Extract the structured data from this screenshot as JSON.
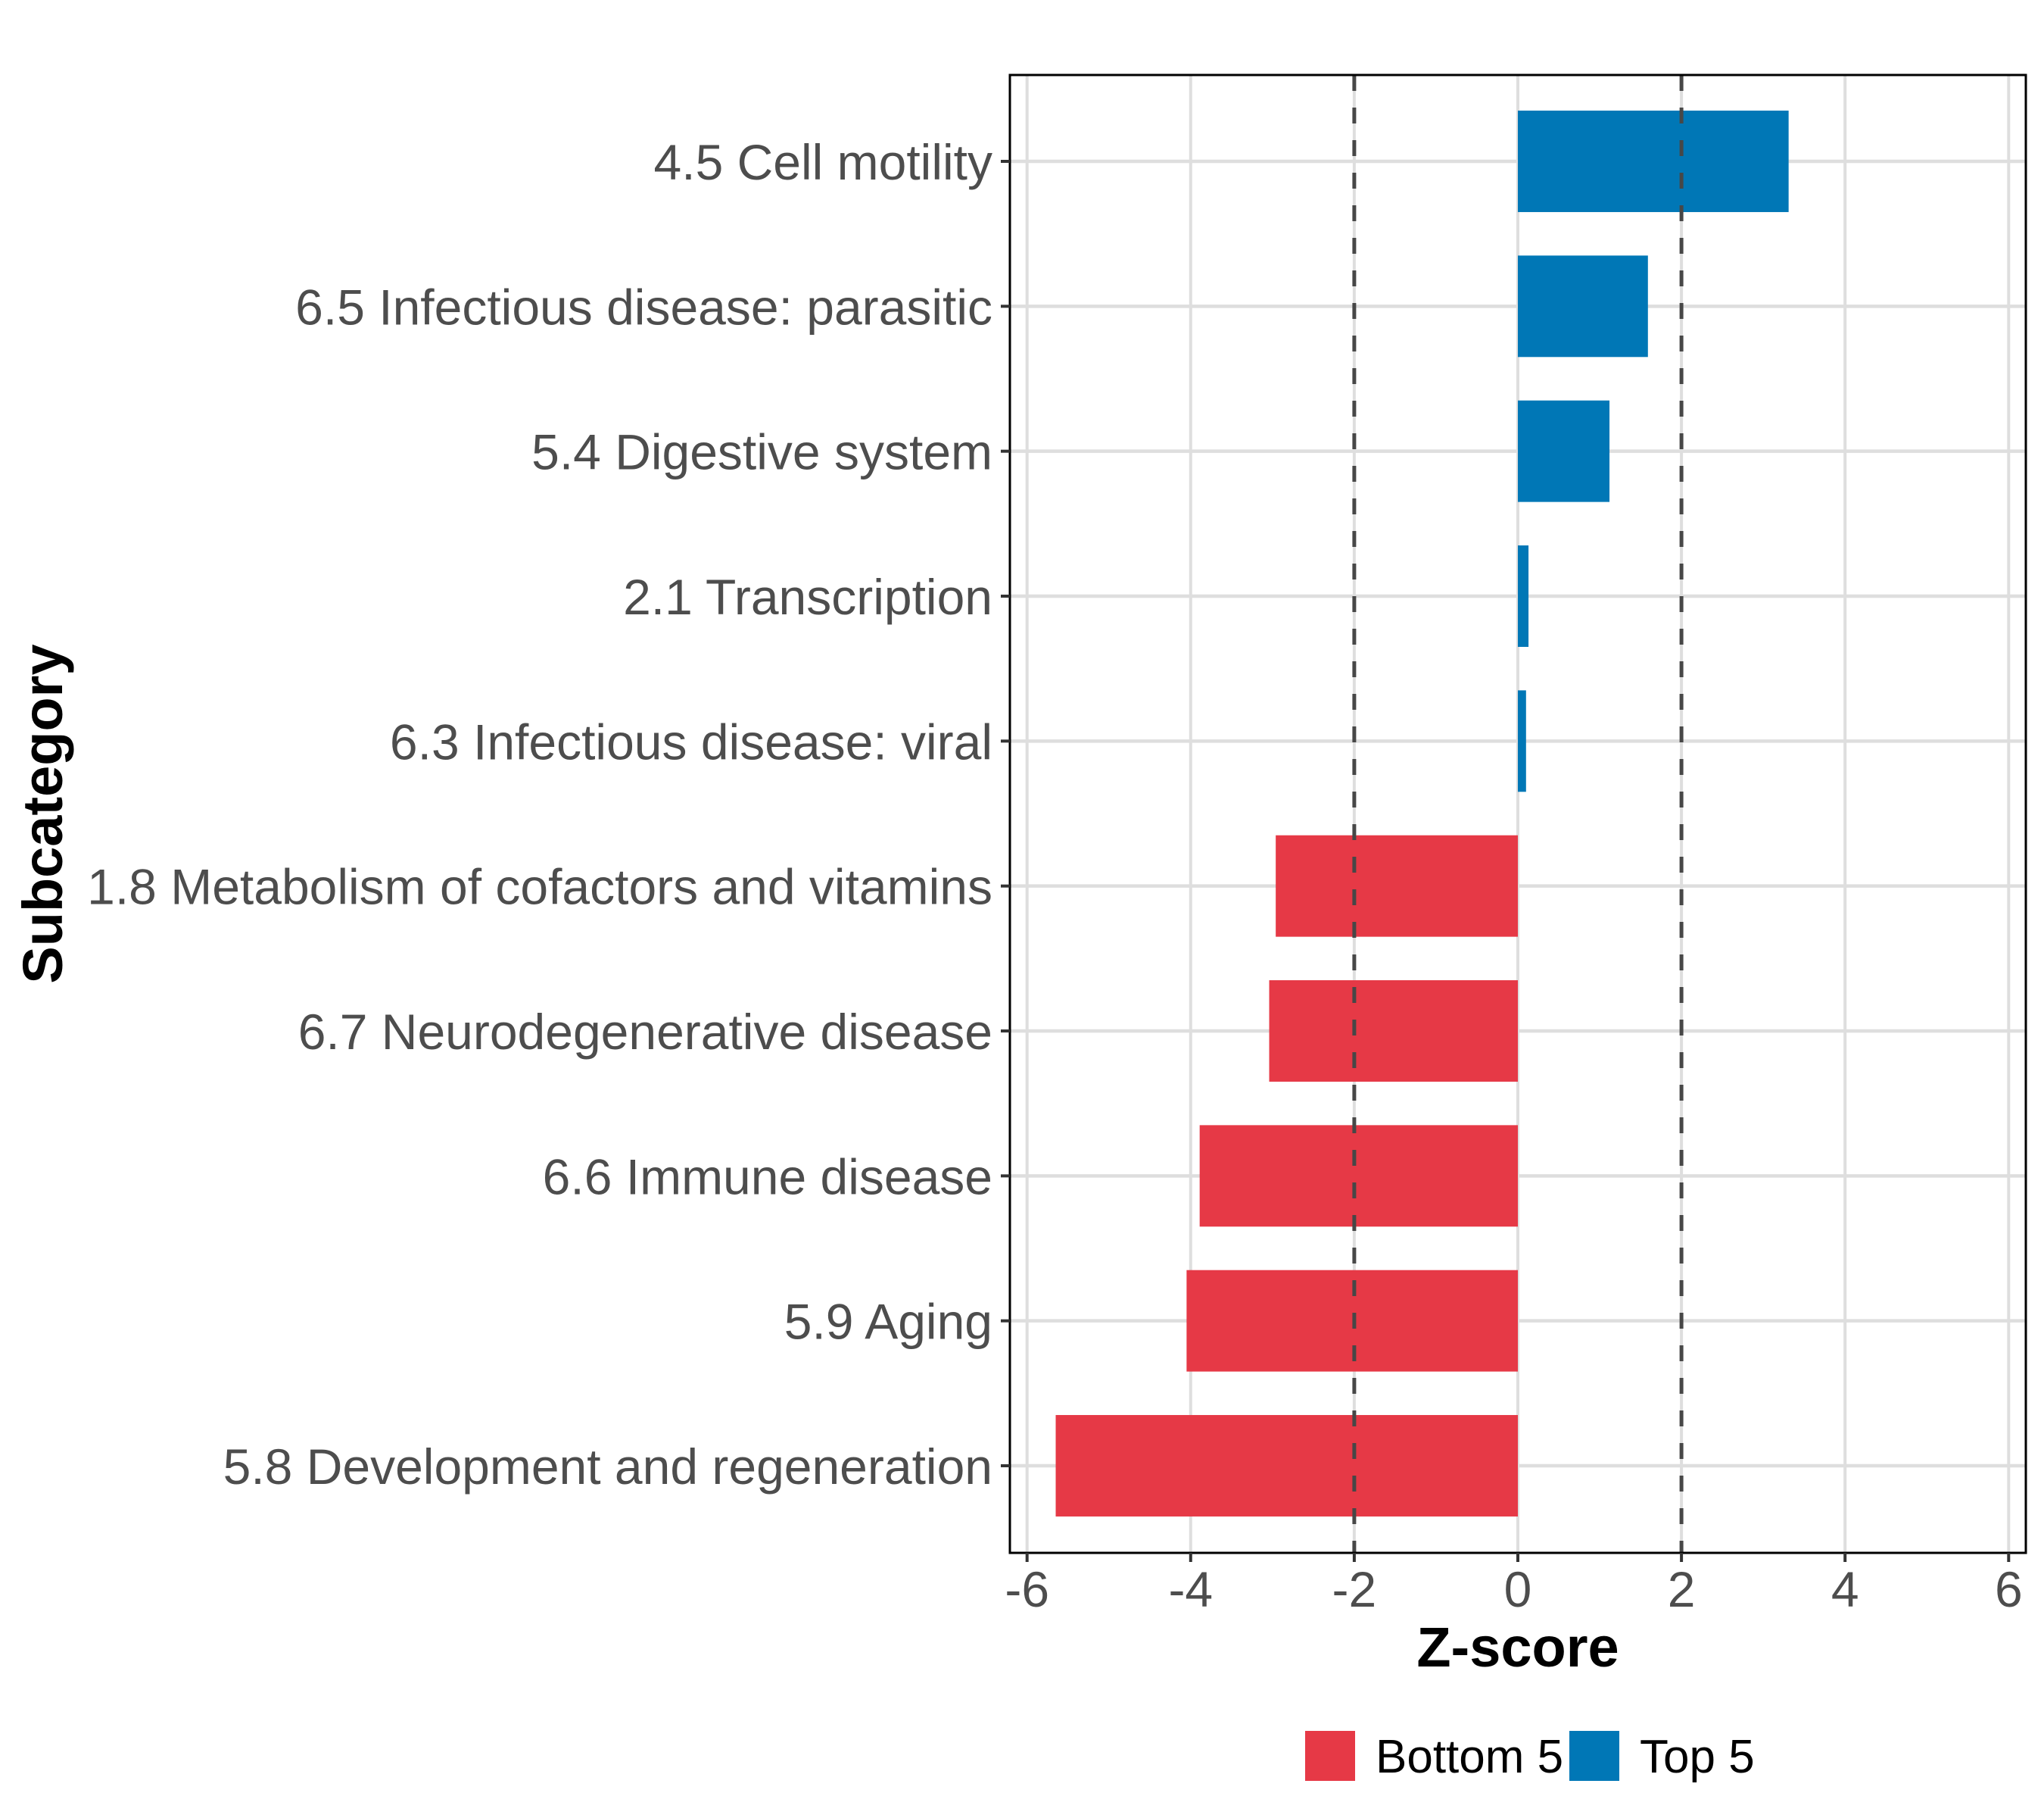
{
  "chart_data": {
    "type": "bar",
    "orientation": "horizontal",
    "title": "",
    "xlabel": "Z-score",
    "ylabel": "Subcategory",
    "xlim": [
      -6.21,
      6.21
    ],
    "xticks": [
      -6,
      -4,
      -2,
      0,
      2,
      4,
      6
    ],
    "xtick_labels": [
      "-6",
      "-4",
      "-2",
      "0",
      "2",
      "4",
      "6"
    ],
    "grid": true,
    "reference_lines": [
      {
        "x": -2,
        "style": "dashed"
      },
      {
        "x": 2,
        "style": "dashed"
      }
    ],
    "categories": [
      "4.5 Cell motility",
      "6.5 Infectious disease: parasitic",
      "5.4 Digestive system",
      "2.1 Transcription",
      "6.3 Infectious disease: viral",
      "1.8 Metabolism of cofactors and vitamins",
      "6.7 Neurodegenerative disease",
      "6.6 Immune disease",
      "5.9 Aging",
      "5.8 Development and regeneration"
    ],
    "values": [
      3.31,
      1.59,
      1.12,
      0.13,
      0.1,
      -2.96,
      -3.04,
      -3.89,
      -4.05,
      -5.65
    ],
    "groups": [
      "Top 5",
      "Top 5",
      "Top 5",
      "Top 5",
      "Top 5",
      "Bottom 5",
      "Bottom 5",
      "Bottom 5",
      "Bottom 5",
      "Bottom 5"
    ],
    "legend": {
      "position": "bottom",
      "entries": [
        {
          "label": "Bottom 5",
          "color": "#E63946"
        },
        {
          "label": "Top 5",
          "color": "#0077B6"
        }
      ]
    },
    "colors": {
      "Bottom 5": "#E63946",
      "Top 5": "#0077B6"
    }
  }
}
